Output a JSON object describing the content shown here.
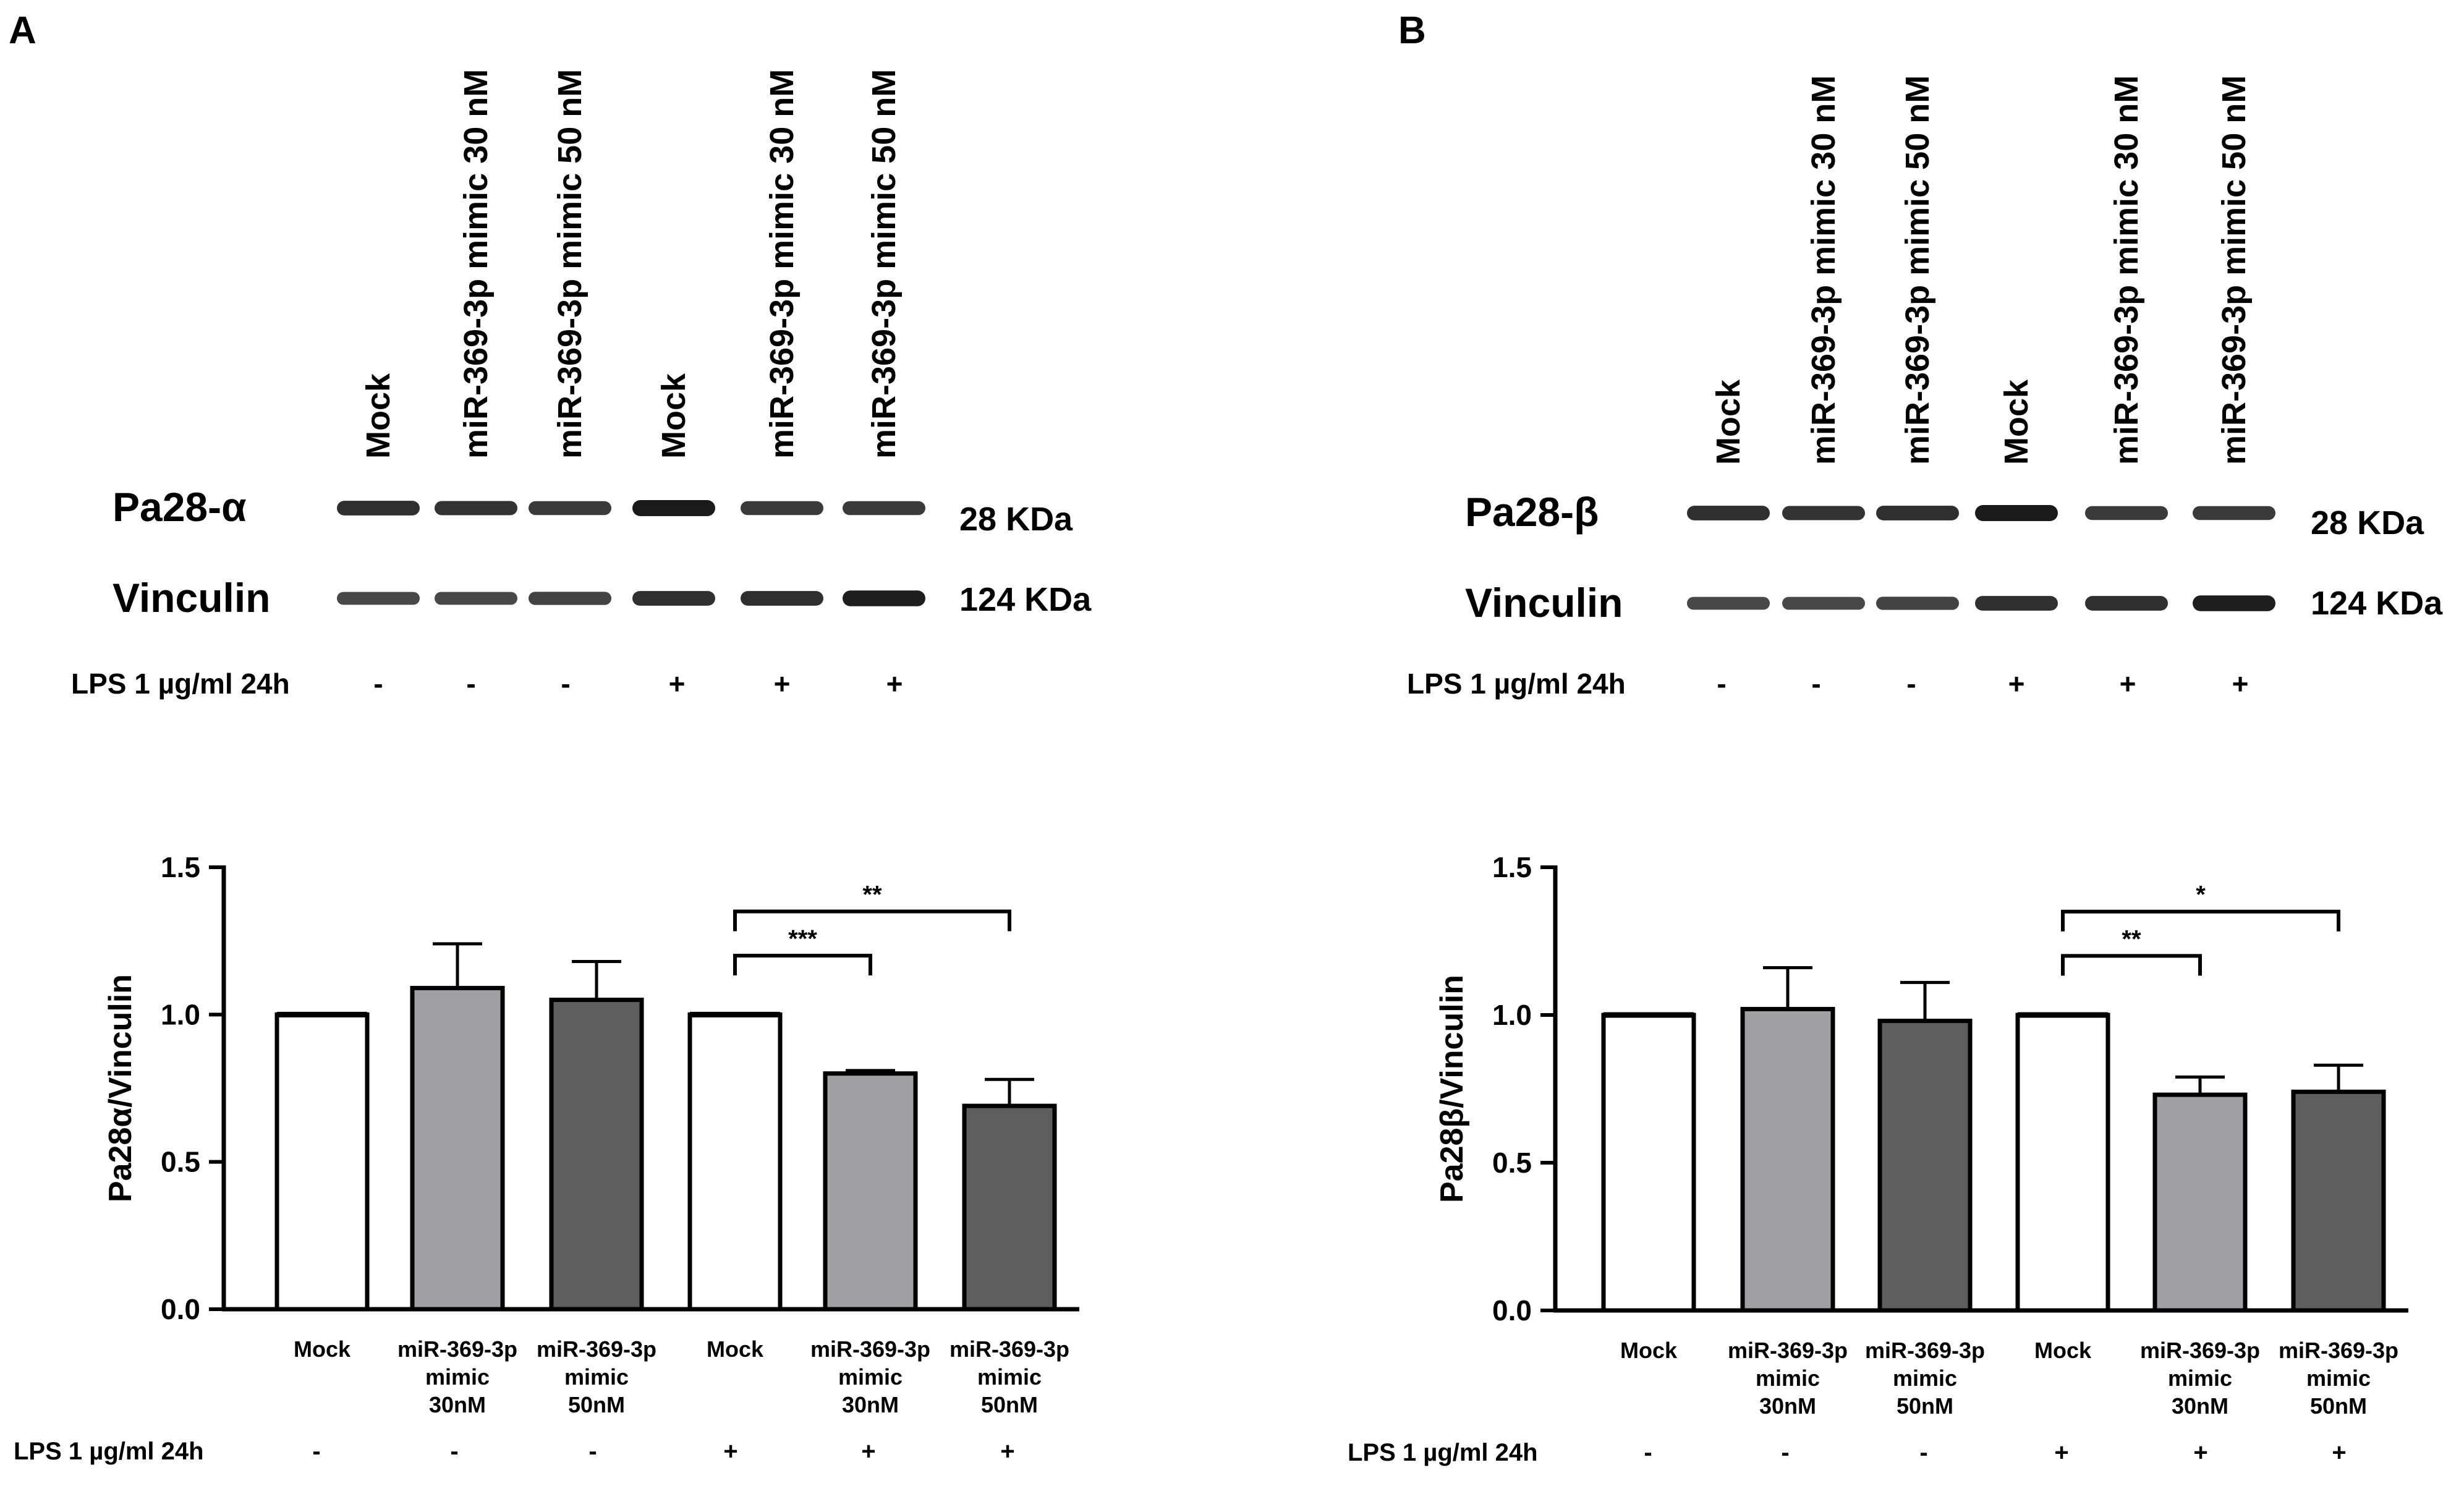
{
  "colors": {
    "mock": "#ffffff",
    "mimic30": "#a0a0a4",
    "mimic50": "#5e5e5e",
    "axis": "#000000",
    "band": "#1a1a1a"
  },
  "panels": [
    {
      "letter": "A",
      "blot": {
        "lane_labels": [
          "Mock",
          "miR-369-3p mimic 30 nM",
          "miR-369-3p mimic 50 nM",
          "Mock",
          "miR-369-3p mimic 30 nM",
          "miR-369-3p mimic 50 nM"
        ],
        "rows": [
          {
            "protein": "Pa28-α",
            "size": "28 KDa",
            "intensity": [
              0.8,
              0.75,
              0.7,
              1.0,
              0.7,
              0.7
            ]
          },
          {
            "protein": "Vinculin",
            "size": "124 KDa",
            "intensity": [
              0.55,
              0.55,
              0.6,
              0.8,
              0.8,
              0.95
            ]
          }
        ],
        "lps_label": "LPS 1 µg/ml 24h",
        "lps_marks": [
          "-",
          "-",
          "-",
          "+",
          "+",
          "+"
        ]
      },
      "chart_data": {
        "type": "bar",
        "ylabel": "Pa28α/Vinculin",
        "ylim": [
          0,
          1.5
        ],
        "yticks": [
          "0.0",
          "0.5",
          "1.0",
          "1.5"
        ],
        "categories": [
          [
            "Mock"
          ],
          [
            "miR-369-3p",
            "mimic",
            "30nM"
          ],
          [
            "miR-369-3p",
            "mimic",
            "50nM"
          ],
          [
            "Mock"
          ],
          [
            "miR-369-3p",
            "mimic",
            "30nM"
          ],
          [
            "miR-369-3p",
            "mimic",
            "50nM"
          ]
        ],
        "values": [
          1.0,
          1.09,
          1.05,
          1.0,
          0.8,
          0.69
        ],
        "errors": [
          0.0,
          0.15,
          0.13,
          0.0,
          0.01,
          0.09
        ],
        "groups": [
          "mock",
          "mimic30",
          "mimic50",
          "mock",
          "mimic30",
          "mimic50"
        ],
        "significance": [
          {
            "from": 3,
            "to": 4,
            "label": "***",
            "y": 1.2
          },
          {
            "from": 3,
            "to": 5,
            "label": "**",
            "y": 1.35
          }
        ],
        "lps_label": "LPS 1 µg/ml 24h",
        "lps_marks": [
          "-",
          "-",
          "-",
          "+",
          "+",
          "+"
        ]
      }
    },
    {
      "letter": "B",
      "blot": {
        "lane_labels": [
          "Mock",
          "miR-369-3p mimic 30 nM",
          "miR-369-3p mimic 50 nM",
          "Mock",
          "miR-369-3p mimic 30 nM",
          "miR-369-3p mimic 50 nM"
        ],
        "rows": [
          {
            "protein": "Pa28-β",
            "size": "28 KDa",
            "intensity": [
              0.8,
              0.75,
              0.8,
              1.0,
              0.7,
              0.7
            ]
          },
          {
            "protein": "Vinculin",
            "size": "124 KDa",
            "intensity": [
              0.55,
              0.55,
              0.6,
              0.8,
              0.8,
              0.95
            ]
          }
        ],
        "lps_label": "LPS 1 µg/ml 24h",
        "lps_marks": [
          "-",
          "-",
          "-",
          "+",
          "+",
          "+"
        ]
      },
      "chart_data": {
        "type": "bar",
        "ylabel": "Pa28β/Vinculin",
        "ylim": [
          0,
          1.5
        ],
        "yticks": [
          "0.0",
          "0.5",
          "1.0",
          "1.5"
        ],
        "categories": [
          [
            "Mock"
          ],
          [
            "miR-369-3p",
            "mimic",
            "30nM"
          ],
          [
            "miR-369-3p",
            "mimic",
            "50nM"
          ],
          [
            "Mock"
          ],
          [
            "miR-369-3p",
            "mimic",
            "30nM"
          ],
          [
            "miR-369-3p",
            "mimic",
            "50nM"
          ]
        ],
        "values": [
          1.0,
          1.02,
          0.98,
          1.0,
          0.73,
          0.74
        ],
        "errors": [
          0.0,
          0.14,
          0.13,
          0.0,
          0.06,
          0.09
        ],
        "groups": [
          "mock",
          "mimic30",
          "mimic50",
          "mock",
          "mimic30",
          "mimic50"
        ],
        "significance": [
          {
            "from": 3,
            "to": 4,
            "label": "**",
            "y": 1.2
          },
          {
            "from": 3,
            "to": 5,
            "label": "*",
            "y": 1.35
          }
        ],
        "lps_label": "LPS 1 µg/ml 24h",
        "lps_marks": [
          "-",
          "-",
          "-",
          "+",
          "+",
          "+"
        ]
      }
    }
  ]
}
